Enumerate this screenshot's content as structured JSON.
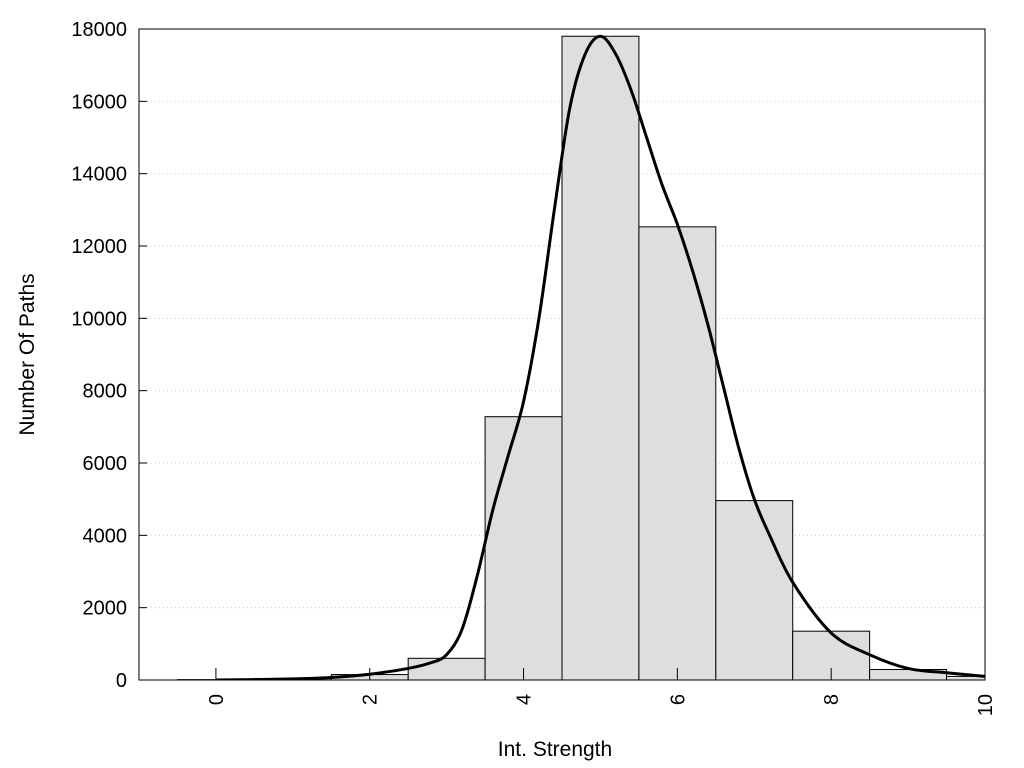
{
  "chart_data": {
    "type": "bar",
    "xlabel": "Int. Strength",
    "ylabel": "Number Of Paths",
    "xlim": [
      -1,
      10
    ],
    "ylim": [
      0,
      18000
    ],
    "x_ticks": [
      0,
      2,
      4,
      6,
      8,
      10
    ],
    "y_ticks": [
      0,
      2000,
      4000,
      6000,
      8000,
      10000,
      12000,
      14000,
      16000,
      18000
    ],
    "grid": "horizontal dotted",
    "bar_width": 1,
    "bars": [
      {
        "x": 0,
        "value": 10
      },
      {
        "x": 1,
        "value": 40
      },
      {
        "x": 2,
        "value": 150
      },
      {
        "x": 3,
        "value": 600
      },
      {
        "x": 4,
        "value": 7280
      },
      {
        "x": 5,
        "value": 17800
      },
      {
        "x": 6,
        "value": 12530
      },
      {
        "x": 7,
        "value": 4960
      },
      {
        "x": 8,
        "value": 1350
      },
      {
        "x": 9,
        "value": 290
      },
      {
        "x": 10,
        "value": 100
      }
    ],
    "curve": {
      "x": [
        0,
        0.5,
        1,
        1.5,
        2,
        2.5,
        2.8,
        3,
        3.2,
        3.4,
        3.6,
        3.8,
        4,
        4.2,
        4.4,
        4.6,
        4.8,
        5,
        5.2,
        5.4,
        5.6,
        5.8,
        6,
        6.2,
        6.4,
        6.6,
        6.8,
        7,
        7.2,
        7.5,
        8,
        8.5,
        9,
        9.5,
        10
      ],
      "y": [
        0,
        10,
        30,
        70,
        160,
        320,
        480,
        700,
        1400,
        2900,
        4700,
        6200,
        7700,
        10000,
        13000,
        15800,
        17300,
        17800,
        17300,
        16300,
        15000,
        13700,
        12600,
        11300,
        9800,
        8100,
        6400,
        5000,
        4000,
        2700,
        1300,
        700,
        320,
        200,
        100
      ]
    },
    "colors": {
      "bar_fill": "#dedede",
      "bar_stroke": "#000000",
      "curve": "#000000",
      "grid": "#cccccc"
    }
  }
}
